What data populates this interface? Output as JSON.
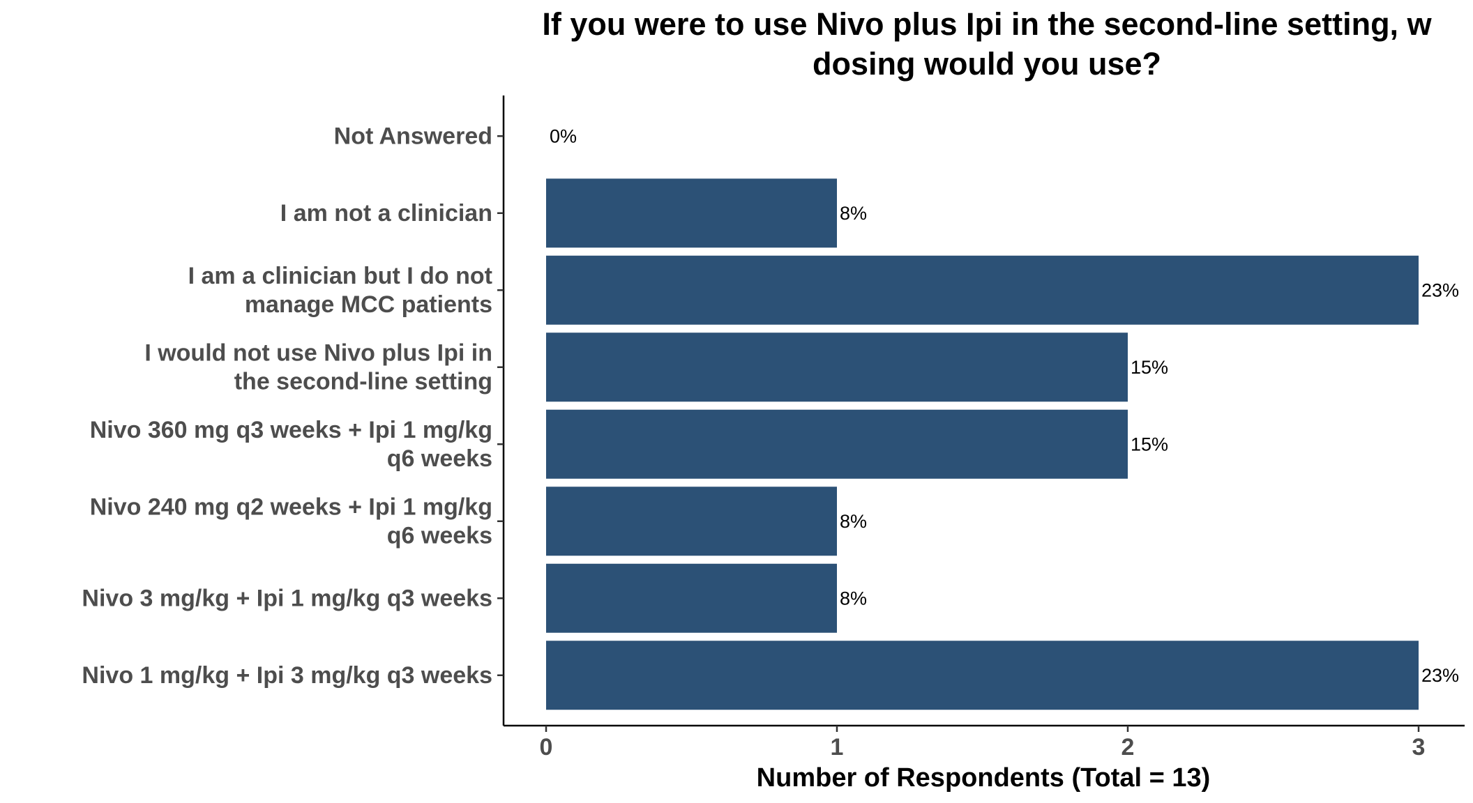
{
  "chart_data": {
    "type": "bar",
    "orientation": "horizontal",
    "title": "If you were to use Nivo plus Ipi in the second-line setting, w dosing would you use?",
    "title_lines": [
      "If you were to use Nivo plus Ipi in the second-line setting, w",
      "dosing would you use?"
    ],
    "xlabel": "Number of Respondents (Total = 13)",
    "ylabel": "",
    "xlim": [
      0,
      3
    ],
    "x_ticks": [
      "0",
      "1",
      "2",
      "3"
    ],
    "grid": false,
    "bar_color": "#2c5176",
    "categories": [
      "Not Answered",
      "I am not a clinician",
      "I am a clinician but I do not manage MCC patients",
      "I would not use Nivo plus Ipi in the second-line setting",
      "Nivo 360 mg q3 weeks + Ipi 1 mg/kg q6 weeks",
      "Nivo 240 mg q2 weeks + Ipi 1 mg/kg q6 weeks",
      "Nivo 3 mg/kg + Ipi 1 mg/kg q3 weeks",
      "Nivo 1 mg/kg + Ipi 3 mg/kg q3 weeks"
    ],
    "category_label_lines": [
      [
        "Not Answered"
      ],
      [
        "I am not a clinician"
      ],
      [
        "I am a clinician but I do not",
        "manage MCC patients"
      ],
      [
        "I would not use Nivo plus Ipi in",
        "the second-line setting"
      ],
      [
        "Nivo 360 mg q3 weeks + Ipi 1 mg/kg",
        "q6 weeks"
      ],
      [
        "Nivo 240 mg q2 weeks + Ipi 1 mg/kg",
        "q6 weeks"
      ],
      [
        "Nivo 3 mg/kg + Ipi 1 mg/kg q3 weeks"
      ],
      [
        "Nivo 1 mg/kg + Ipi 3 mg/kg q3 weeks"
      ]
    ],
    "values": [
      0,
      1,
      3,
      2,
      2,
      1,
      1,
      3
    ],
    "data_labels": [
      "0%",
      "8%",
      "23%",
      "15%",
      "15%",
      "8%",
      "8%",
      "23%"
    ]
  }
}
